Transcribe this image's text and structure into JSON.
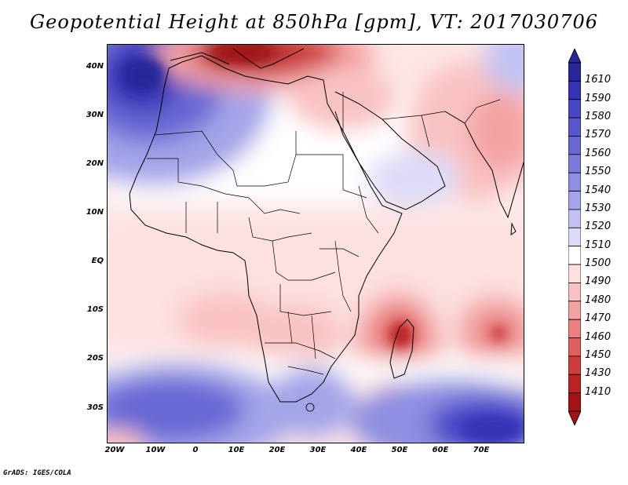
{
  "title": "Geopotential Height at 850hPa [gpm], VT: 2017030706",
  "credit": "GrADS: IGES/COLA",
  "map": {
    "variable": "Geopotential Height",
    "level": "850hPa",
    "units": "gpm",
    "valid_time": "2017030706",
    "lat_labels": [
      "40N",
      "30N",
      "20N",
      "10N",
      "EQ",
      "10S",
      "20S",
      "30S"
    ],
    "lon_labels": [
      "20W",
      "10W",
      "0",
      "10E",
      "20E",
      "30E",
      "40E",
      "50E",
      "60E",
      "70E"
    ]
  },
  "colorbar": {
    "labels": [
      "1610",
      "1590",
      "1580",
      "1570",
      "1560",
      "1550",
      "1540",
      "1530",
      "1520",
      "1510",
      "1500",
      "1490",
      "1480",
      "1470",
      "1460",
      "1450",
      "1430",
      "1410"
    ],
    "colors": [
      "#27279a",
      "#3434b5",
      "#4646c6",
      "#5656cd",
      "#6868d4",
      "#7a7adb",
      "#8e8ee2",
      "#a4a4e9",
      "#c2c2f2",
      "#dcdcf8",
      "#ffffff",
      "#fde0e0",
      "#f9c2c2",
      "#f3a2a2",
      "#ea8080",
      "#df5e5e",
      "#cf3c3c",
      "#bb2222",
      "#a01414"
    ],
    "max_arrow_color": "#27279a",
    "min_arrow_color": "#a01414"
  }
}
